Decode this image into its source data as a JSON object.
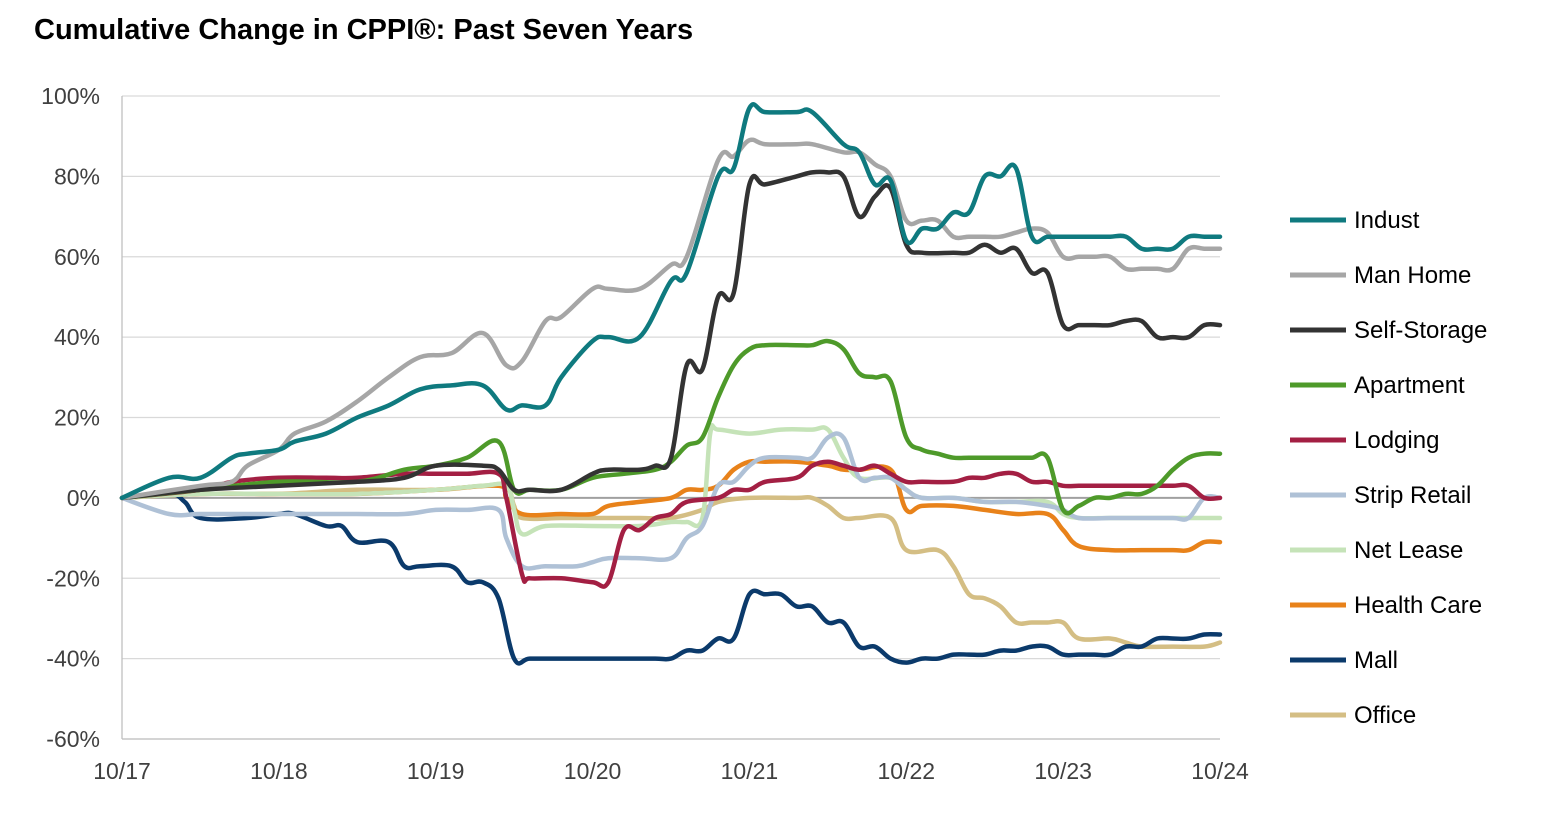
{
  "chart_data": {
    "type": "line",
    "title": "Cumulative Change in CPPI®: Past Seven Years",
    "xlabel": "",
    "ylabel": "",
    "x_ticks": [
      "10/17",
      "10/18",
      "10/19",
      "10/20",
      "10/21",
      "10/22",
      "10/23",
      "10/24"
    ],
    "y_ticks": [
      "100%",
      "80%",
      "60%",
      "40%",
      "20%",
      "0%",
      "-20%",
      "-40%",
      "-60%"
    ],
    "ylim": [
      -60,
      100
    ],
    "grid": "horizontal",
    "legend_position": "right",
    "series": [
      {
        "name": "Indust",
        "color": "#0F7A7F",
        "x": [
          0,
          0.3,
          0.5,
          0.7,
          0.8,
          1.0,
          1.1,
          1.3,
          1.5,
          1.7,
          1.9,
          2.1,
          2.3,
          2.45,
          2.55,
          2.7,
          2.8,
          3.0,
          3.1,
          3.3,
          3.5,
          3.6,
          3.8,
          3.9,
          4.0,
          4.1,
          4.3,
          4.4,
          4.6,
          4.7,
          4.8,
          4.9,
          5.0,
          5.1,
          5.2,
          5.3,
          5.4,
          5.5,
          5.6,
          5.7,
          5.8,
          5.9,
          6.0,
          6.1,
          6.2,
          6.3,
          6.4,
          6.5,
          6.6,
          6.7,
          6.8,
          6.9,
          7.0
        ],
        "values": [
          0,
          5,
          5,
          10,
          11,
          12,
          14,
          16,
          20,
          23,
          27,
          28,
          28,
          22,
          23,
          23,
          30,
          39,
          40,
          40,
          54,
          56,
          80,
          82,
          97,
          96,
          96,
          96,
          88,
          86,
          78,
          79,
          64,
          67,
          67,
          71,
          71,
          80,
          80,
          82,
          65,
          65,
          65,
          65,
          65,
          65,
          65,
          62,
          62,
          62,
          65,
          65,
          65
        ]
      },
      {
        "name": "Man Home",
        "color": "#A6A6A6",
        "x": [
          0,
          0.5,
          0.7,
          0.8,
          1.0,
          1.1,
          1.3,
          1.5,
          1.7,
          1.9,
          2.1,
          2.3,
          2.45,
          2.55,
          2.7,
          2.8,
          3.0,
          3.1,
          3.3,
          3.5,
          3.6,
          3.8,
          3.9,
          4.0,
          4.1,
          4.3,
          4.4,
          4.6,
          4.7,
          4.8,
          4.9,
          5.0,
          5.1,
          5.2,
          5.3,
          5.4,
          5.5,
          5.6,
          5.7,
          5.8,
          5.9,
          6.0,
          6.1,
          6.2,
          6.3,
          6.4,
          6.5,
          6.6,
          6.7,
          6.8,
          6.9,
          7.0
        ],
        "values": [
          0,
          3,
          4,
          8,
          12,
          16,
          19,
          24,
          30,
          35,
          36,
          41,
          33,
          34,
          44,
          45,
          52,
          52,
          52,
          58,
          60,
          84,
          85,
          89,
          88,
          88,
          88,
          86,
          86,
          83,
          80,
          69,
          69,
          69,
          65,
          65,
          65,
          65,
          66,
          67,
          66,
          60,
          60,
          60,
          60,
          57,
          57,
          57,
          57,
          62,
          62,
          62
        ]
      },
      {
        "name": "Self-Storage",
        "color": "#333333",
        "x": [
          0,
          0.5,
          1.0,
          1.5,
          1.8,
          2.0,
          2.3,
          2.4,
          2.5,
          2.6,
          2.8,
          3.0,
          3.1,
          3.3,
          3.4,
          3.5,
          3.6,
          3.7,
          3.8,
          3.9,
          4.0,
          4.1,
          4.3,
          4.4,
          4.5,
          4.6,
          4.7,
          4.8,
          4.9,
          5.0,
          5.1,
          5.3,
          5.4,
          5.5,
          5.6,
          5.7,
          5.8,
          5.9,
          6.0,
          6.1,
          6.2,
          6.3,
          6.4,
          6.5,
          6.6,
          6.7,
          6.8,
          6.9,
          7.0
        ],
        "values": [
          0,
          2,
          3,
          4,
          5,
          8,
          8,
          7,
          2,
          2,
          2,
          6,
          7,
          7,
          8,
          10,
          33,
          32,
          50,
          51,
          78,
          78,
          80,
          81,
          81,
          80,
          70,
          75,
          77,
          63,
          61,
          61,
          61,
          63,
          61,
          62,
          56,
          56,
          43,
          43,
          43,
          43,
          44,
          44,
          40,
          40,
          40,
          43,
          43
        ]
      },
      {
        "name": "Apartment",
        "color": "#4E9A2A",
        "x": [
          0,
          0.5,
          1.0,
          1.5,
          1.8,
          2.0,
          2.2,
          2.4,
          2.5,
          2.6,
          2.8,
          3.0,
          3.2,
          3.4,
          3.5,
          3.6,
          3.7,
          3.8,
          3.9,
          4.0,
          4.1,
          4.3,
          4.4,
          4.5,
          4.6,
          4.7,
          4.8,
          4.9,
          5.0,
          5.1,
          5.2,
          5.3,
          5.4,
          5.5,
          5.6,
          5.7,
          5.8,
          5.9,
          6.0,
          6.1,
          6.2,
          6.3,
          6.4,
          6.5,
          6.6,
          6.7,
          6.8,
          6.9,
          7.0
        ],
        "values": [
          0,
          2,
          4,
          4,
          7,
          8,
          10,
          14,
          2,
          2,
          2,
          5,
          6,
          7,
          9,
          13,
          15,
          25,
          33,
          37,
          38,
          38,
          38,
          39,
          37,
          31,
          30,
          29,
          15,
          12,
          11,
          10,
          10,
          10,
          10,
          10,
          10,
          10,
          -3,
          -2,
          0,
          0,
          1,
          1,
          3,
          7,
          10,
          11,
          11
        ]
      },
      {
        "name": "Lodging",
        "color": "#A31F43",
        "x": [
          0,
          0.5,
          0.7,
          1.0,
          1.3,
          1.5,
          1.8,
          2.0,
          2.2,
          2.4,
          2.45,
          2.55,
          2.6,
          2.8,
          3.0,
          3.1,
          3.2,
          3.3,
          3.4,
          3.5,
          3.6,
          3.8,
          3.9,
          4.0,
          4.1,
          4.3,
          4.4,
          4.5,
          4.6,
          4.7,
          4.8,
          4.9,
          5.0,
          5.1,
          5.3,
          5.4,
          5.5,
          5.6,
          5.7,
          5.8,
          5.9,
          6.0,
          6.1,
          6.2,
          6.3,
          6.4,
          6.5,
          6.6,
          6.7,
          6.8,
          6.9,
          7.0
        ],
        "values": [
          0,
          2,
          4,
          5,
          5,
          5,
          6,
          6,
          6,
          6,
          0,
          -19,
          -20,
          -20,
          -21,
          -21,
          -8,
          -8,
          -5,
          -4,
          -1,
          0,
          2,
          2,
          4,
          5,
          8,
          9,
          8,
          7,
          8,
          6,
          4,
          4,
          4,
          5,
          5,
          6,
          6,
          4,
          4,
          3,
          3,
          3,
          3,
          3,
          3,
          3,
          3,
          3,
          0,
          0
        ]
      },
      {
        "name": "Strip Retail",
        "color": "#AFC1D6",
        "x": [
          0,
          0.3,
          0.5,
          0.8,
          1.0,
          1.3,
          1.5,
          1.8,
          2.0,
          2.2,
          2.4,
          2.45,
          2.55,
          2.7,
          2.9,
          3.0,
          3.1,
          3.3,
          3.5,
          3.6,
          3.7,
          3.8,
          3.9,
          4.0,
          4.1,
          4.3,
          4.4,
          4.5,
          4.6,
          4.7,
          4.8,
          4.9,
          5.0,
          5.1,
          5.3,
          5.5,
          5.7,
          5.9,
          6.0,
          6.1,
          6.3,
          6.5,
          6.7,
          6.8,
          6.9,
          7.0
        ],
        "values": [
          0,
          -4,
          -4,
          -4,
          -4,
          -4,
          -4,
          -4,
          -3,
          -3,
          -3,
          -10,
          -17,
          -17,
          -17,
          -16,
          -15,
          -15,
          -15,
          -10,
          -7,
          3,
          4,
          8,
          10,
          10,
          10,
          15,
          15,
          5,
          5,
          5,
          2,
          0,
          0,
          -1,
          -1,
          -2,
          -3,
          -5,
          -5,
          -5,
          -5,
          -5,
          0,
          0
        ]
      },
      {
        "name": "Net Lease",
        "color": "#C5E3B8",
        "x": [
          0,
          0.5,
          1.0,
          1.5,
          2.0,
          2.3,
          2.45,
          2.5,
          2.55,
          2.7,
          3.0,
          3.3,
          3.5,
          3.6,
          3.7,
          3.75,
          3.8,
          4.0,
          4.2,
          4.4,
          4.5,
          4.6,
          4.7,
          4.9,
          5.0,
          5.1,
          5.3,
          5.5,
          5.7,
          5.9,
          6.0,
          6.1,
          6.3,
          6.5,
          6.7,
          6.9,
          7.0
        ],
        "values": [
          0,
          1,
          1,
          1,
          2,
          3,
          3,
          -3,
          -9,
          -7,
          -7,
          -7,
          -6,
          -6,
          -5,
          16,
          17,
          16,
          17,
          17,
          17,
          10,
          5,
          5,
          2,
          0,
          0,
          -1,
          -1,
          -1,
          -4,
          -5,
          -5,
          -5,
          -5,
          -5,
          -5
        ]
      },
      {
        "name": "Health Care",
        "color": "#E8821A",
        "x": [
          0,
          0.5,
          1.0,
          1.5,
          2.0,
          2.4,
          2.45,
          2.55,
          2.8,
          3.0,
          3.1,
          3.3,
          3.5,
          3.6,
          3.7,
          3.8,
          3.9,
          4.0,
          4.1,
          4.3,
          4.5,
          4.6,
          4.7,
          4.9,
          5.0,
          5.1,
          5.3,
          5.5,
          5.7,
          5.9,
          6.0,
          6.1,
          6.3,
          6.5,
          6.7,
          6.8,
          6.9,
          7.0
        ],
        "values": [
          0,
          1,
          1,
          1,
          2,
          3,
          0,
          -4,
          -4,
          -4,
          -2,
          -1,
          0,
          2,
          2,
          3,
          7,
          9,
          9,
          9,
          8,
          7,
          7,
          7,
          -3,
          -2,
          -2,
          -3,
          -4,
          -4,
          -8,
          -12,
          -13,
          -13,
          -13,
          -13,
          -11,
          -11
        ]
      },
      {
        "name": "Mall",
        "color": "#0B3A6B",
        "x": [
          0,
          0.3,
          0.4,
          0.5,
          0.8,
          1.0,
          1.1,
          1.3,
          1.4,
          1.5,
          1.7,
          1.8,
          1.9,
          2.1,
          2.2,
          2.3,
          2.4,
          2.5,
          2.6,
          2.8,
          3.0,
          3.2,
          3.4,
          3.5,
          3.6,
          3.7,
          3.8,
          3.9,
          4.0,
          4.1,
          4.2,
          4.3,
          4.4,
          4.5,
          4.6,
          4.7,
          4.8,
          4.9,
          5.0,
          5.1,
          5.2,
          5.3,
          5.4,
          5.5,
          5.6,
          5.7,
          5.8,
          5.9,
          6.0,
          6.1,
          6.2,
          6.3,
          6.4,
          6.5,
          6.6,
          6.7,
          6.8,
          6.9,
          7.0
        ],
        "values": [
          0,
          1,
          -1,
          -5,
          -5,
          -4,
          -4,
          -7,
          -7,
          -11,
          -11,
          -17,
          -17,
          -17,
          -21,
          -21,
          -25,
          -40,
          -40,
          -40,
          -40,
          -40,
          -40,
          -40,
          -38,
          -38,
          -35,
          -35,
          -24,
          -24,
          -24,
          -27,
          -27,
          -31,
          -31,
          -37,
          -37,
          -40,
          -41,
          -40,
          -40,
          -39,
          -39,
          -39,
          -38,
          -38,
          -37,
          -37,
          -39,
          -39,
          -39,
          -39,
          -37,
          -37,
          -35,
          -35,
          -35,
          -34,
          -34
        ]
      },
      {
        "name": "Office",
        "color": "#D4BE84",
        "x": [
          0,
          0.5,
          1.0,
          1.5,
          2.0,
          2.3,
          2.45,
          2.5,
          2.55,
          2.8,
          3.0,
          3.3,
          3.5,
          3.7,
          3.8,
          4.0,
          4.3,
          4.4,
          4.5,
          4.6,
          4.7,
          4.9,
          5.0,
          5.2,
          5.3,
          5.4,
          5.5,
          5.6,
          5.7,
          5.8,
          5.9,
          6.0,
          6.1,
          6.3,
          6.4,
          6.5,
          6.7,
          6.9,
          7.0
        ],
        "values": [
          0,
          1,
          1,
          2,
          2,
          3,
          3,
          -2,
          -5,
          -5,
          -5,
          -5,
          -5,
          -3,
          -1,
          0,
          0,
          0,
          -2,
          -5,
          -5,
          -5,
          -13,
          -13,
          -17,
          -24,
          -25,
          -27,
          -31,
          -31,
          -31,
          -31,
          -35,
          -35,
          -36,
          -37,
          -37,
          -37,
          -36
        ]
      }
    ]
  }
}
